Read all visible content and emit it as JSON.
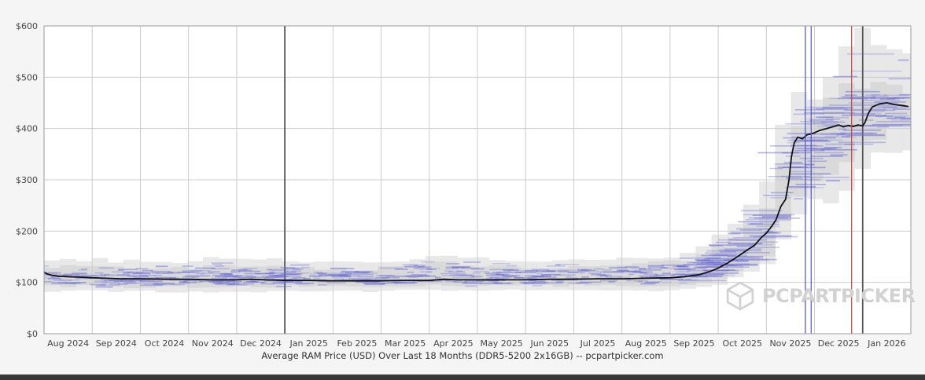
{
  "page": {
    "background": "#f5f5f5",
    "bottom_bar_color": "#383838"
  },
  "chart_data": {
    "type": "line",
    "title": "Average RAM Price (USD) Over Last 18 Months (DDR5-5200 2x16GB) -- pcpartpicker.com",
    "xlabel": "",
    "ylabel": "",
    "ylim": [
      0,
      600
    ],
    "ytick_values": [
      0,
      100,
      200,
      300,
      400,
      500,
      600
    ],
    "ytick_labels": [
      "$0",
      "$100",
      "$200",
      "$300",
      "$400",
      "$500",
      "$600"
    ],
    "xtick_labels": [
      "Aug 2024",
      "Sep 2024",
      "Oct 2024",
      "Nov 2024",
      "Dec 2024",
      "Jan 2025",
      "Feb 2025",
      "Mar 2025",
      "Apr 2025",
      "May 2025",
      "Jun 2025",
      "Jul 2025",
      "Aug 2025",
      "Sep 2025",
      "Oct 2025",
      "Nov 2025",
      "Dec 2025",
      "Jan 2026"
    ],
    "x_months_span": 18,
    "grid": true,
    "legend": "none",
    "year_boundary_lines": [
      5,
      17
    ],
    "event_lines": [
      {
        "name": "event-line-blue-1",
        "x_month": 15.81,
        "color": "#5050c8"
      },
      {
        "name": "event-line-blue-2",
        "x_month": 15.93,
        "color": "#5050c8"
      },
      {
        "name": "event-line-red",
        "x_month": 16.77,
        "color": "#c04040"
      }
    ],
    "series": [
      {
        "name": "average-price-usd",
        "color": "#111111",
        "x_month": [
          0,
          0.05,
          0.15,
          0.3,
          0.5,
          0.8,
          1,
          1.3,
          1.6,
          2,
          2.5,
          3,
          3.5,
          4,
          4.3,
          4.6,
          5,
          5.5,
          6,
          6.5,
          7,
          7.5,
          8,
          8.3,
          8.6,
          9,
          9.5,
          10,
          10.5,
          11,
          11.5,
          12,
          12.5,
          13,
          13.3,
          13.6,
          13.85,
          14,
          14.2,
          14.4,
          14.6,
          14.75,
          14.9,
          15,
          15.1,
          15.2,
          15.3,
          15.4,
          15.47,
          15.52,
          15.58,
          15.65,
          15.75,
          15.85,
          15.95,
          16,
          16.1,
          16.25,
          16.4,
          16.5,
          16.6,
          16.7,
          16.8,
          16.9,
          17,
          17.05,
          17.12,
          17.2,
          17.35,
          17.5,
          17.65,
          17.8,
          17.95
        ],
        "values": [
          120,
          117,
          114,
          112,
          111,
          110,
          109,
          108,
          107,
          107,
          106,
          106,
          105,
          105,
          106,
          105,
          104,
          104,
          103,
          103,
          103,
          104,
          104,
          106,
          105,
          105,
          105,
          105,
          106,
          106,
          107,
          107,
          108,
          109,
          111,
          115,
          122,
          128,
          138,
          150,
          163,
          172,
          188,
          196,
          208,
          222,
          248,
          262,
          300,
          345,
          372,
          383,
          380,
          388,
          390,
          392,
          396,
          400,
          404,
          407,
          403,
          406,
          404,
          407,
          405,
          412,
          430,
          442,
          448,
          450,
          447,
          445,
          443
        ]
      }
    ],
    "range_bands": [
      {
        "name": "minmax-range",
        "color": "#e4e4e4",
        "x_month": [
          0,
          1,
          2,
          3,
          4,
          4.5,
          5,
          6,
          7,
          8,
          8.5,
          9,
          10,
          11,
          12,
          13,
          13.5,
          14,
          14.5,
          15,
          15.3,
          15.6,
          16,
          16.4,
          16.8,
          17.2,
          17.6,
          18
        ],
        "hi": [
          143,
          145,
          140,
          141,
          150,
          147,
          142,
          139,
          140,
          151,
          154,
          146,
          142,
          142,
          147,
          152,
          162,
          190,
          225,
          290,
          390,
          455,
          470,
          520,
          585,
          585,
          560,
          555
        ],
        "lo": [
          84,
          83,
          83,
          82,
          83,
          83,
          83,
          84,
          83,
          84,
          84,
          84,
          85,
          85,
          84,
          85,
          89,
          97,
          112,
          135,
          175,
          230,
          258,
          262,
          300,
          345,
          360,
          368
        ]
      },
      {
        "name": "typical-range",
        "color": "#d6d6d6",
        "x_month": [
          0,
          1,
          2,
          3,
          4,
          4.5,
          5,
          6,
          7,
          8,
          8.5,
          9,
          10,
          11,
          12,
          13,
          13.5,
          14,
          14.5,
          15,
          15.3,
          15.6,
          16,
          16.4,
          16.8,
          17.2,
          17.6,
          18
        ],
        "hi": [
          130,
          132,
          128,
          128,
          135,
          133,
          128,
          126,
          127,
          136,
          138,
          131,
          129,
          130,
          134,
          139,
          147,
          168,
          196,
          245,
          320,
          408,
          430,
          460,
          485,
          492,
          480,
          470
        ],
        "lo": [
          93,
          92,
          91,
          91,
          91,
          91,
          92,
          92,
          92,
          93,
          93,
          93,
          94,
          94,
          93,
          94,
          98,
          108,
          124,
          152,
          205,
          268,
          300,
          322,
          355,
          378,
          392,
          400
        ]
      }
    ],
    "listing_marks": {
      "description": "individual listing prices rendered as short horizontal blue dashes",
      "color": "#6b6bd6",
      "seed": 1337,
      "count_flat": 520,
      "count_rise": 230
    }
  },
  "axes": {
    "label_color": "#444444",
    "grid_color": "#cccccc",
    "year_line_color": "#555555",
    "border_color": "#9a9a9a",
    "plot_bg": "#ffffff"
  },
  "watermark": {
    "text": "PCPARTPICKER",
    "color": "#d2d2d2",
    "icon": "pcpartpicker-cube-logo-icon"
  }
}
